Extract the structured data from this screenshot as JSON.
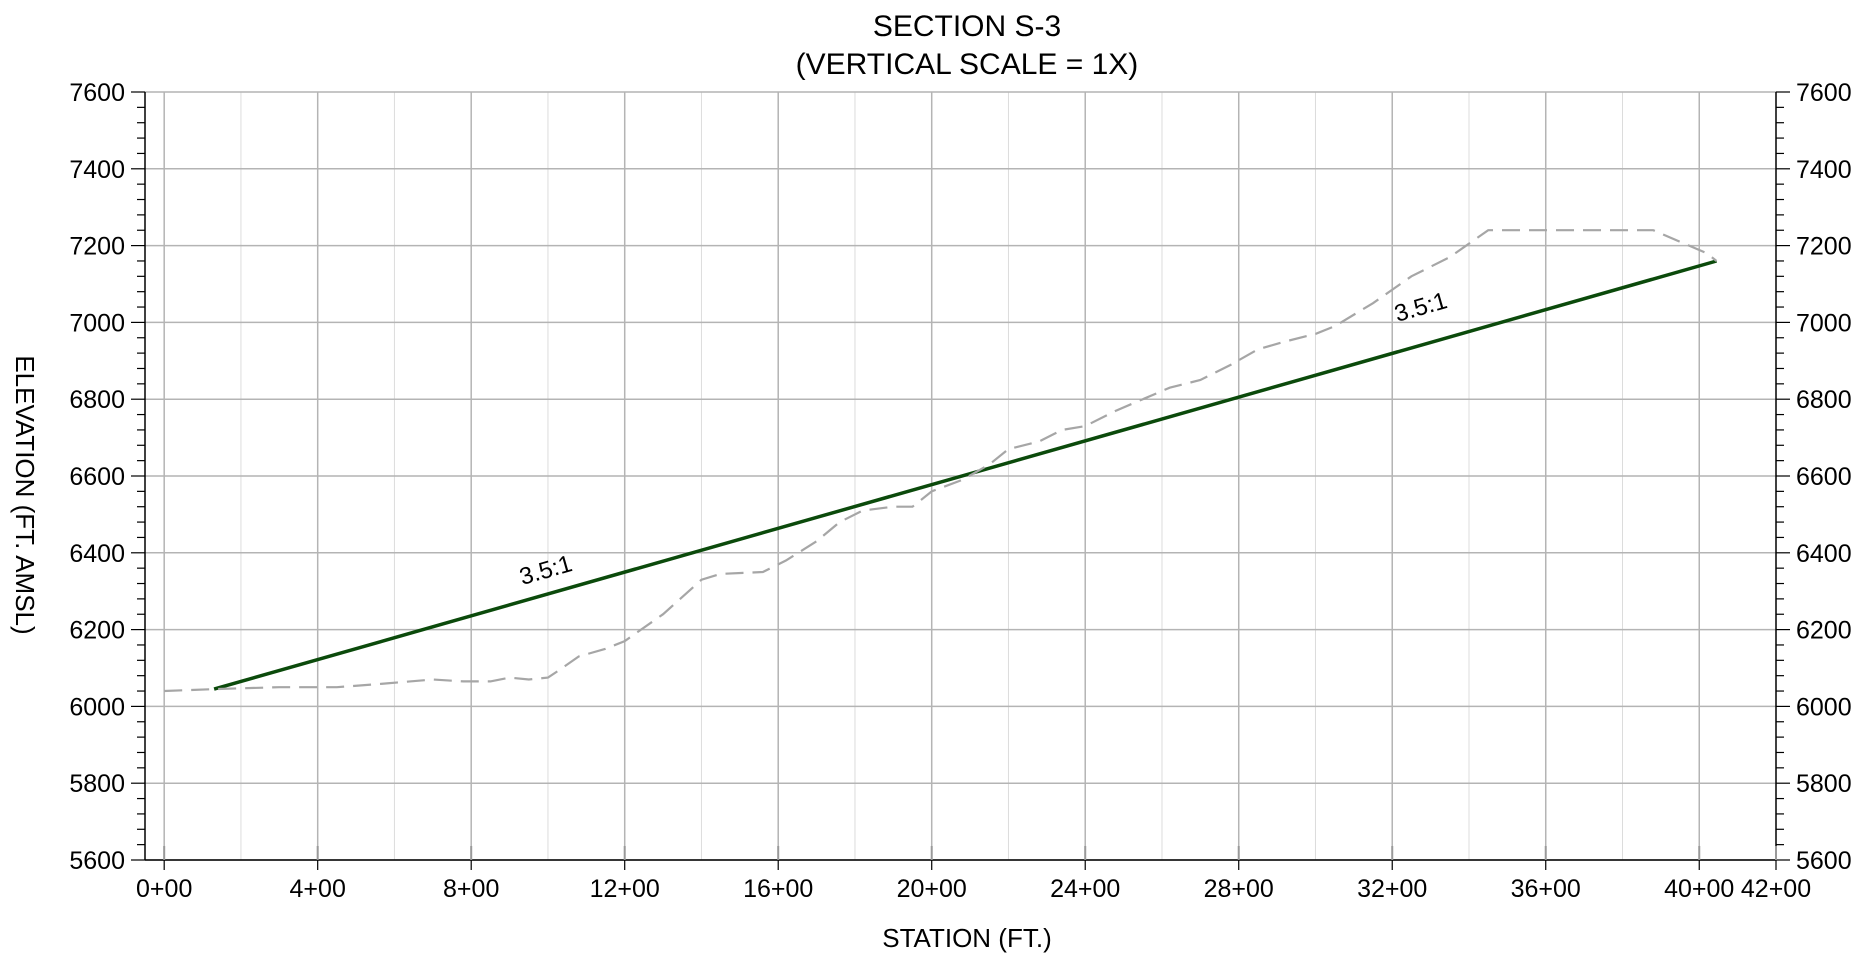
{
  "chart_data": {
    "type": "line",
    "title": "SECTION S-3",
    "subtitle": "(VERTICAL SCALE = 1X)",
    "xlabel": "STATION (FT.)",
    "ylabel": "ELEVATION (FT. AMSL)",
    "xlim": [
      -50,
      4200
    ],
    "ylim": [
      5600,
      7600
    ],
    "x_major_ticks": [
      0,
      400,
      800,
      1200,
      1600,
      2000,
      2400,
      2800,
      3200,
      3600,
      4000,
      4200
    ],
    "x_tick_labels": [
      "0+00",
      "4+00",
      "8+00",
      "12+00",
      "16+00",
      "20+00",
      "24+00",
      "28+00",
      "32+00",
      "36+00",
      "40+00",
      "42+00"
    ],
    "x_minor_grid": [
      200,
      600,
      1000,
      1400,
      1800,
      2200,
      2600,
      3000,
      3400,
      3800
    ],
    "y_ticks": [
      5600,
      5800,
      6000,
      6200,
      6400,
      6600,
      6800,
      7000,
      7200,
      7400,
      7600
    ],
    "y_tick_labels_left": [
      "5600",
      "5800",
      "6000",
      "6200",
      "6400",
      "6600",
      "6800",
      "7000",
      "7200",
      "7400",
      "7600"
    ],
    "y_tick_labels_right": [
      "5600",
      "5800",
      "6000",
      "6200",
      "6400",
      "6600",
      "6800",
      "7000",
      "7200",
      "7400",
      "7600"
    ],
    "y_minor_step": 40,
    "grid": true,
    "series": [
      {
        "style": "solid",
        "color": "#0b4a0b",
        "x": [
          130,
          4045
        ],
        "y": [
          6045,
          7160
        ]
      },
      {
        "style": "dashed",
        "color": "#a6a6a6",
        "x": [
          0,
          130,
          300,
          450,
          580,
          700,
          780,
          850,
          900,
          950,
          1000,
          1030,
          1080,
          1150,
          1200,
          1300,
          1400,
          1450,
          1560,
          1620,
          1700,
          1760,
          1820,
          1900,
          1950,
          2000,
          2080,
          2150,
          2200,
          2280,
          2340,
          2400,
          2480,
          2550,
          2620,
          2700,
          2780,
          2850,
          2920,
          3000,
          3050,
          3150,
          3250,
          3350,
          3450,
          3580,
          3700,
          3880,
          3950,
          4020,
          4045
        ],
        "y": [
          6040,
          6045,
          6050,
          6050,
          6060,
          6070,
          6065,
          6065,
          6075,
          6070,
          6075,
          6095,
          6130,
          6150,
          6170,
          6240,
          6330,
          6345,
          6350,
          6380,
          6430,
          6480,
          6510,
          6520,
          6520,
          6560,
          6590,
          6630,
          6670,
          6690,
          6720,
          6730,
          6770,
          6800,
          6830,
          6850,
          6890,
          6930,
          6950,
          6970,
          6990,
          7050,
          7120,
          7170,
          7240,
          7240,
          7240,
          7240,
          7210,
          7180,
          7160
        ]
      }
    ],
    "annotations": [
      {
        "text": "3.5:1",
        "x": 1000,
        "y": 6335,
        "rotate_with_line": true
      },
      {
        "text": "3.5:1",
        "x": 3280,
        "y": 7020,
        "rotate_with_line": true
      }
    ]
  }
}
